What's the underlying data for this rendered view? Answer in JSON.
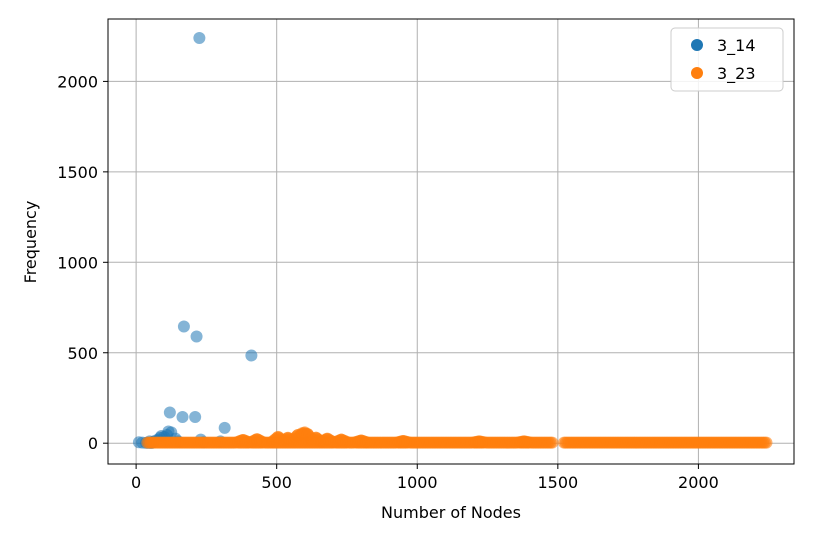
{
  "chart_data": {
    "type": "scatter",
    "xlabel": "Number of Nodes",
    "ylabel": "Frequency",
    "xlim": [
      -100,
      2340
    ],
    "ylim": [
      -115,
      2345
    ],
    "x_ticks": [
      0,
      500,
      1000,
      1500,
      2000
    ],
    "y_ticks": [
      0,
      500,
      1000,
      1500,
      2000
    ],
    "grid": true,
    "legend_position": "top-right",
    "series": [
      {
        "name": "3_14",
        "color": "#1f77b4",
        "opacity": 0.55,
        "x": [
          10,
          22,
          35,
          48,
          55,
          60,
          70,
          80,
          85,
          90,
          100,
          110,
          115,
          120,
          125,
          140,
          150,
          165,
          170,
          210,
          215,
          225,
          230,
          240,
          300,
          315,
          410,
          60,
          45
        ],
        "y": [
          5,
          3,
          2,
          10,
          1,
          8,
          15,
          20,
          30,
          40,
          35,
          45,
          65,
          170,
          60,
          25,
          10,
          145,
          645,
          145,
          590,
          2240,
          20,
          5,
          10,
          85,
          485,
          5,
          2
        ]
      },
      {
        "name": "3_23",
        "color": "#ff7f0e",
        "opacity": 0.6,
        "x_start": 40,
        "x_end": 2245,
        "x_gap": [
          1480,
          1520
        ],
        "baseline": 3,
        "bumps": [
          {
            "x": 380,
            "y": 18
          },
          {
            "x": 430,
            "y": 22
          },
          {
            "x": 505,
            "y": 35
          },
          {
            "x": 540,
            "y": 30
          },
          {
            "x": 575,
            "y": 45
          },
          {
            "x": 590,
            "y": 55
          },
          {
            "x": 600,
            "y": 60
          },
          {
            "x": 610,
            "y": 50
          },
          {
            "x": 640,
            "y": 30
          },
          {
            "x": 680,
            "y": 25
          },
          {
            "x": 730,
            "y": 20
          },
          {
            "x": 800,
            "y": 15
          },
          {
            "x": 950,
            "y": 12
          },
          {
            "x": 1220,
            "y": 10
          },
          {
            "x": 1380,
            "y": 10
          }
        ]
      }
    ]
  }
}
